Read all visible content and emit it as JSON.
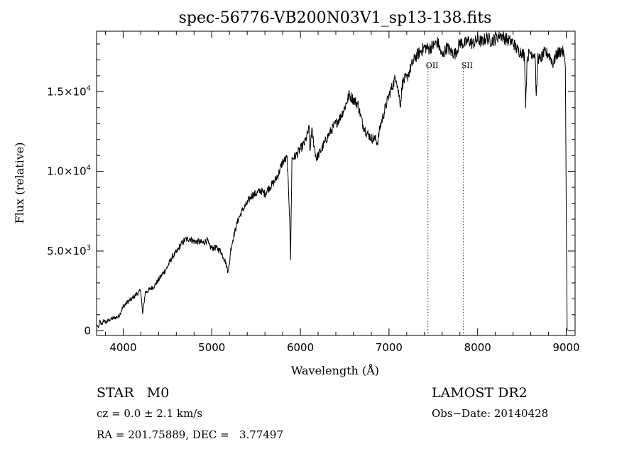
{
  "chart_data": {
    "type": "line",
    "title": "spec-56776-VB200N03V1_sp13-138.fits",
    "xlabel": "Wavelength (Å)",
    "ylabel": "Flux (relative)",
    "xlim": [
      3700,
      9100
    ],
    "ylim": [
      -300,
      18800
    ],
    "xticks": [
      {
        "value": 4000,
        "label": "4000"
      },
      {
        "value": 5000,
        "label": "5000"
      },
      {
        "value": 6000,
        "label": "6000"
      },
      {
        "value": 7000,
        "label": "7000"
      },
      {
        "value": 8000,
        "label": "8000"
      },
      {
        "value": 9000,
        "label": "9000"
      }
    ],
    "yticks": [
      {
        "value": 0,
        "label": "0",
        "base": "",
        "exp": ""
      },
      {
        "value": 5000,
        "label": "",
        "base": "5.0×10",
        "exp": "3"
      },
      {
        "value": 10000,
        "label": "",
        "base": "1.0×10",
        "exp": "4"
      },
      {
        "value": 15000,
        "label": "",
        "base": "1.5×10",
        "exp": "4"
      }
    ],
    "grid": false,
    "series": [
      {
        "name": "",
        "x": [
          3700,
          3720,
          3740,
          3760,
          3780,
          3800,
          3850,
          3900,
          3950,
          4000,
          4050,
          4100,
          4150,
          4200,
          4220,
          4230,
          4250,
          4300,
          4350,
          4400,
          4450,
          4500,
          4550,
          4600,
          4650,
          4700,
          4750,
          4800,
          4850,
          4900,
          4950,
          4970,
          5000,
          5050,
          5100,
          5150,
          5180,
          5200,
          5210,
          5250,
          5300,
          5350,
          5400,
          5450,
          5500,
          5550,
          5600,
          5650,
          5700,
          5750,
          5800,
          5850,
          5880,
          5890,
          5896,
          5905,
          5930,
          5950,
          6000,
          6050,
          6100,
          6110,
          6120,
          6130,
          6150,
          6180,
          6200,
          6250,
          6300,
          6350,
          6400,
          6450,
          6500,
          6550,
          6600,
          6650,
          6700,
          6750,
          6800,
          6850,
          6870,
          6900,
          6950,
          7000,
          7050,
          7080,
          7100,
          7130,
          7150,
          7180,
          7200,
          7250,
          7300,
          7350,
          7400,
          7450,
          7500,
          7550,
          7600,
          7650,
          7700,
          7750,
          7800,
          7850,
          7900,
          7950,
          8000,
          8050,
          8100,
          8150,
          8200,
          8250,
          8300,
          8350,
          8400,
          8450,
          8500,
          8530,
          8542,
          8560,
          8600,
          8650,
          8662,
          8680,
          8700,
          8750,
          8800,
          8850,
          8900,
          8950,
          8980,
          8990,
          9000,
          9010
        ],
        "y": [
          400,
          200,
          600,
          300,
          700,
          500,
          700,
          800,
          900,
          1500,
          1800,
          2000,
          2300,
          2500,
          1000,
          1500,
          2400,
          2600,
          2800,
          3200,
          3600,
          4000,
          4600,
          4900,
          5400,
          5700,
          5800,
          5600,
          5600,
          5500,
          5700,
          5300,
          5200,
          5200,
          5000,
          4400,
          3800,
          4100,
          5000,
          6000,
          7000,
          7600,
          8000,
          8500,
          8600,
          8800,
          8600,
          9000,
          9300,
          9800,
          10600,
          10800,
          7000,
          4500,
          7500,
          10800,
          10900,
          11000,
          11400,
          11800,
          12700,
          11000,
          12300,
          12500,
          11800,
          10800,
          11000,
          11500,
          12100,
          12600,
          13000,
          13400,
          14000,
          14800,
          14500,
          14200,
          13000,
          12400,
          12100,
          12000,
          11800,
          12800,
          13800,
          14800,
          15500,
          16000,
          15200,
          14200,
          15500,
          15800,
          15800,
          16600,
          17200,
          17500,
          17800,
          17700,
          17900,
          18100,
          17200,
          17800,
          17500,
          17400,
          18100,
          18000,
          18200,
          18000,
          18300,
          18100,
          18400,
          18200,
          18300,
          18600,
          18400,
          18200,
          18100,
          17600,
          17500,
          17200,
          14300,
          17200,
          17500,
          17300,
          14500,
          17200,
          17000,
          17400,
          17400,
          16800,
          17400,
          17600,
          17300,
          16500,
          8000,
          0
        ]
      }
    ],
    "annotations": [
      {
        "label": "OII",
        "x": 7440
      },
      {
        "label": "SII",
        "x": 7840
      }
    ],
    "info": {
      "object": "STAR   M0",
      "survey": "LAMOST DR2",
      "redshift": "cz = 0.0 ± 2.1 km/s",
      "obs_date": "Obs−Date: 20140428",
      "coords": "RA = 201.75889, DEC =   3.77497"
    }
  }
}
